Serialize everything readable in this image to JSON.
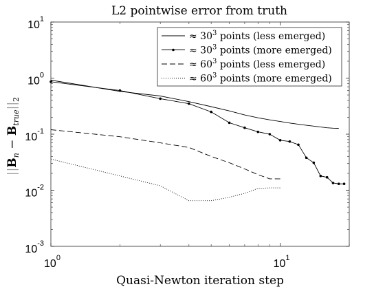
{
  "chart_data": {
    "type": "line",
    "title": "L2 pointwise error from truth",
    "xlabel": "Quasi-Newton iteration step",
    "ylabel": "||B_n − B_true||_2",
    "ylabel_parts": {
      "left_bars": "||",
      "b1": "B",
      "sub1": "n",
      "minus": " − ",
      "b2": "B",
      "sub2": "true",
      "right_bars": "||",
      "sub3": "2"
    },
    "xscale": "log",
    "yscale": "log",
    "xlim": [
      1,
      20
    ],
    "ylim": [
      0.001,
      10
    ],
    "x_ticks": [
      {
        "value": 1,
        "base": "10",
        "exp": "0"
      },
      {
        "value": 10,
        "base": "10",
        "exp": "1"
      }
    ],
    "y_ticks": [
      {
        "value": 0.001,
        "base": "10",
        "exp": "-3"
      },
      {
        "value": 0.01,
        "base": "10",
        "exp": "-2"
      },
      {
        "value": 0.1,
        "base": "10",
        "exp": "-1"
      },
      {
        "value": 1,
        "base": "10",
        "exp": "0"
      },
      {
        "value": 10,
        "base": "10",
        "exp": "1"
      }
    ],
    "grid": false,
    "legend_position": "top-right",
    "series": [
      {
        "name": "≈ 30³ points (less emerged)",
        "name_parts": {
          "pre": "≈ 30",
          "sup": "3",
          "post": " points (less emerged)"
        },
        "style": "solid",
        "markers": false,
        "x": [
          1,
          2,
          3,
          4,
          5,
          6,
          7,
          8,
          9,
          10,
          11,
          12,
          13,
          14,
          15,
          16,
          17,
          18
        ],
        "y": [
          0.92,
          0.58,
          0.48,
          0.38,
          0.31,
          0.26,
          0.22,
          0.196,
          0.18,
          0.168,
          0.158,
          0.15,
          0.144,
          0.139,
          0.134,
          0.13,
          0.128,
          0.127
        ]
      },
      {
        "name": "≈ 30³ points (more emerged)",
        "name_parts": {
          "pre": "≈ 30",
          "sup": "3",
          "post": " points (more emerged)"
        },
        "style": "solid",
        "markers": true,
        "x": [
          1,
          2,
          3,
          4,
          5,
          6,
          7,
          8,
          9,
          10,
          11,
          12,
          13,
          14,
          15,
          16,
          17,
          18,
          19
        ],
        "y": [
          0.86,
          0.6,
          0.43,
          0.35,
          0.25,
          0.16,
          0.13,
          0.11,
          0.1,
          0.078,
          0.074,
          0.065,
          0.038,
          0.031,
          0.018,
          0.017,
          0.0135,
          0.013,
          0.013
        ]
      },
      {
        "name": "≈ 60³ points (less emerged)",
        "name_parts": {
          "pre": "≈ 60",
          "sup": "3",
          "post": " points (less emerged)"
        },
        "style": "dashed",
        "markers": false,
        "x": [
          1,
          2,
          3,
          4,
          5,
          6,
          7,
          8,
          9,
          10
        ],
        "y": [
          0.12,
          0.09,
          0.07,
          0.058,
          0.04,
          0.031,
          0.024,
          0.019,
          0.016,
          0.016
        ]
      },
      {
        "name": "≈ 60³ points (more emerged)",
        "name_parts": {
          "pre": "≈ 60",
          "sup": "3",
          "post": " points (more emerged)"
        },
        "style": "dotted",
        "markers": false,
        "x": [
          1,
          2,
          3,
          4,
          5,
          6,
          7,
          8,
          9,
          10
        ],
        "y": [
          0.036,
          0.018,
          0.012,
          0.0065,
          0.0065,
          0.0075,
          0.0088,
          0.0108,
          0.011,
          0.011
        ]
      }
    ]
  }
}
